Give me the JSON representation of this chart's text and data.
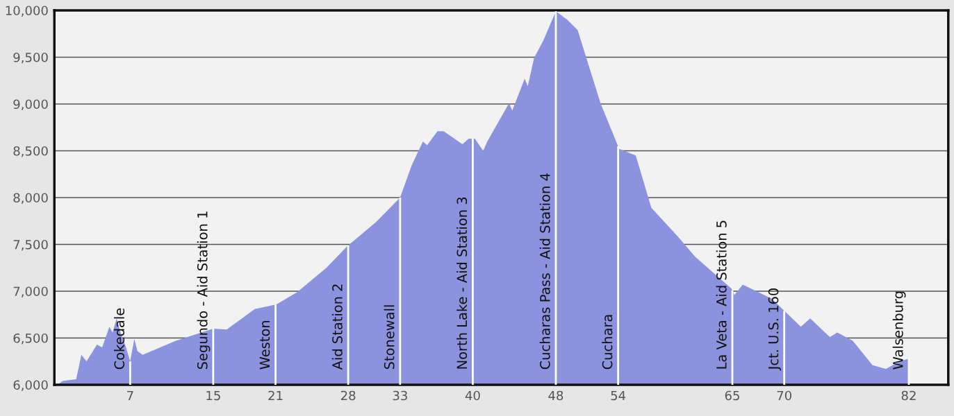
{
  "chart_data": {
    "type": "area",
    "color": "#8c93de",
    "x": [
      0.0,
      0.5,
      1.8,
      2.3,
      2.8,
      3.8,
      4.3,
      5.0,
      5.3,
      5.7,
      6.1,
      6.6,
      7.0,
      7.4,
      7.7,
      8.2,
      11.4,
      15.0,
      16.3,
      19.0,
      21.1,
      23.1,
      25.9,
      27.9,
      30.7,
      33.0,
      34.1,
      35.2,
      35.6,
      36.6,
      37.2,
      39.0,
      39.6,
      40.2,
      41.0,
      41.4,
      43.5,
      43.8,
      45.0,
      45.3,
      45.9,
      46.8,
      48.0,
      49.1,
      50.1,
      52.3,
      54.1,
      55.7,
      57.2,
      59.7,
      61.4,
      64.9,
      65.2,
      66.0,
      68.8,
      71.6,
      72.5,
      74.4,
      75.1,
      76.6,
      78.5,
      79.8,
      81.1,
      82.0
    ],
    "values": [
      6000,
      6040,
      6060,
      6320,
      6250,
      6430,
      6400,
      6620,
      6560,
      6710,
      6550,
      6400,
      6250,
      6490,
      6360,
      6320,
      6470,
      6600,
      6590,
      6810,
      6860,
      6990,
      7250,
      7480,
      7740,
      8000,
      8340,
      8600,
      8560,
      8710,
      8710,
      8570,
      8630,
      8630,
      8500,
      8600,
      9010,
      8930,
      9270,
      9190,
      9490,
      9680,
      9990,
      9900,
      9790,
      9010,
      8520,
      8450,
      7890,
      7590,
      7370,
      7030,
      6960,
      7070,
      6920,
      6620,
      6710,
      6510,
      6560,
      6470,
      6210,
      6170,
      6250,
      6280
    ],
    "xlim": [
      -0.3,
      85.8
    ],
    "ylim": [
      6000,
      10000
    ],
    "xticks": [
      7,
      15,
      21,
      28,
      33,
      40,
      48,
      54,
      65,
      70,
      82
    ],
    "yticks": [
      {
        "value": 6000,
        "label": "6,000"
      },
      {
        "value": 6500,
        "label": "6,500"
      },
      {
        "value": 7000,
        "label": "7,000"
      },
      {
        "value": 7500,
        "label": "7,500"
      },
      {
        "value": 8000,
        "label": "8,000"
      },
      {
        "value": 8500,
        "label": "8,500"
      },
      {
        "value": 9000,
        "label": "9,000"
      },
      {
        "value": 9500,
        "label": "9,500"
      },
      {
        "value": 10000,
        "label": "10,000"
      }
    ],
    "grid": "y",
    "ref_lines": [
      {
        "axis": "x",
        "value": 7,
        "label": "Cokedale",
        "color": "#ffffff"
      },
      {
        "axis": "x",
        "value": 15,
        "label": "Segundo - Aid Station 1",
        "color": "#ffffff"
      },
      {
        "axis": "x",
        "value": 21,
        "label": "Weston",
        "color": "#ffffff"
      },
      {
        "axis": "x",
        "value": 28,
        "label": "Aid Station 2",
        "color": "#ffffff"
      },
      {
        "axis": "x",
        "value": 33,
        "label": "Stonewall",
        "color": "#ffffff"
      },
      {
        "axis": "x",
        "value": 40,
        "label": "North Lake - Aid Station 3",
        "color": "#ffffff"
      },
      {
        "axis": "x",
        "value": 48,
        "label": "Cucharas Pass - Aid Station 4",
        "color": "#ffffff"
      },
      {
        "axis": "x",
        "value": 54,
        "label": "Cuchara",
        "color": "#ffffff"
      },
      {
        "axis": "x",
        "value": 65,
        "label": "La Veta - Aid Station 5",
        "color": "#ffffff"
      },
      {
        "axis": "x",
        "value": 70,
        "label": "Jct. U.S. 160",
        "color": "#ffffff"
      },
      {
        "axis": "x",
        "value": 82,
        "label": "Walsenburg",
        "color": "#ffffff"
      }
    ]
  }
}
